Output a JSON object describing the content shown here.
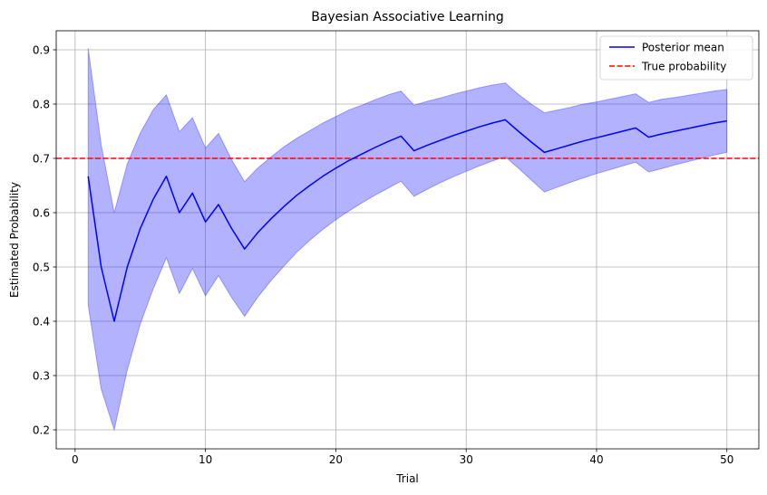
{
  "chart_data": {
    "type": "line",
    "title": "Bayesian Associative Learning",
    "xlabel": "Trial",
    "ylabel": "Estimated Probability",
    "xlim": [
      -1.45,
      52.45
    ],
    "ylim": [
      0.165,
      0.935
    ],
    "xticks": [
      0,
      10,
      20,
      30,
      40,
      50
    ],
    "yticks": [
      0.2,
      0.3,
      0.4,
      0.5,
      0.6,
      0.7,
      0.8,
      0.9
    ],
    "grid": true,
    "legend_position": "top-right",
    "series": [
      {
        "name": "Posterior mean",
        "color": "#0000ff",
        "style": "solid",
        "x": [
          1,
          2,
          3,
          4,
          5,
          6,
          7,
          8,
          9,
          10,
          11,
          12,
          13,
          14,
          15,
          16,
          17,
          18,
          19,
          20,
          21,
          22,
          23,
          24,
          25,
          26,
          27,
          28,
          29,
          30,
          31,
          32,
          33,
          34,
          35,
          36,
          37,
          38,
          39,
          40,
          41,
          42,
          43,
          44,
          45,
          46,
          47,
          48,
          49,
          50
        ],
        "y": [
          0.667,
          0.5,
          0.4,
          0.5,
          0.571,
          0.625,
          0.667,
          0.6,
          0.636,
          0.583,
          0.615,
          0.571,
          0.533,
          0.563,
          0.588,
          0.611,
          0.632,
          0.65,
          0.667,
          0.682,
          0.696,
          0.708,
          0.72,
          0.731,
          0.741,
          0.714,
          0.724,
          0.733,
          0.742,
          0.75,
          0.758,
          0.765,
          0.771,
          0.75,
          0.73,
          0.711,
          0.718,
          0.725,
          0.732,
          0.738,
          0.744,
          0.75,
          0.756,
          0.739,
          0.745,
          0.75,
          0.755,
          0.76,
          0.765,
          0.769
        ]
      },
      {
        "name": "True probability",
        "color": "#ff0000",
        "style": "dashed",
        "value": 0.7
      }
    ],
    "band": {
      "color": "#0000ff",
      "x": [
        1,
        2,
        3,
        4,
        5,
        6,
        7,
        8,
        9,
        10,
        11,
        12,
        13,
        14,
        15,
        16,
        17,
        18,
        19,
        20,
        21,
        22,
        23,
        24,
        25,
        26,
        27,
        28,
        29,
        30,
        31,
        32,
        33,
        34,
        35,
        36,
        37,
        38,
        39,
        40,
        41,
        42,
        43,
        44,
        45,
        46,
        47,
        48,
        49,
        50
      ],
      "lower": [
        0.43,
        0.275,
        0.2,
        0.31,
        0.395,
        0.46,
        0.517,
        0.451,
        0.497,
        0.447,
        0.484,
        0.444,
        0.409,
        0.444,
        0.474,
        0.501,
        0.527,
        0.549,
        0.569,
        0.587,
        0.603,
        0.618,
        0.632,
        0.645,
        0.658,
        0.63,
        0.643,
        0.655,
        0.666,
        0.676,
        0.686,
        0.695,
        0.703,
        0.682,
        0.66,
        0.638,
        0.647,
        0.656,
        0.664,
        0.672,
        0.679,
        0.686,
        0.693,
        0.675,
        0.681,
        0.688,
        0.694,
        0.7,
        0.706,
        0.711
      ],
      "upper": [
        0.903,
        0.725,
        0.6,
        0.69,
        0.747,
        0.79,
        0.817,
        0.749,
        0.775,
        0.719,
        0.746,
        0.698,
        0.657,
        0.682,
        0.702,
        0.721,
        0.737,
        0.751,
        0.765,
        0.777,
        0.789,
        0.798,
        0.808,
        0.817,
        0.824,
        0.798,
        0.805,
        0.811,
        0.818,
        0.824,
        0.83,
        0.835,
        0.839,
        0.818,
        0.8,
        0.784,
        0.789,
        0.794,
        0.8,
        0.804,
        0.809,
        0.814,
        0.819,
        0.803,
        0.809,
        0.812,
        0.816,
        0.82,
        0.824,
        0.827
      ]
    }
  }
}
